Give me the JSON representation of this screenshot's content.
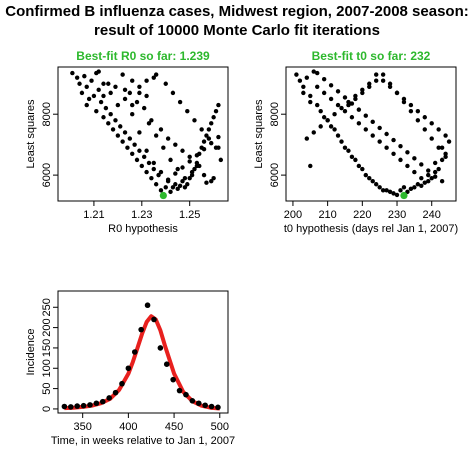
{
  "title_line1": "Confirmed B influenza cases, Midwest region, 2007-2008 season:",
  "title_line2": "result of 10000 Monte Carlo fit iterations",
  "chart_data": [
    {
      "type": "scatter",
      "title": "Best-fit R0 so far: 1.239",
      "title_color": "#2db82d",
      "xlabel": "R0 hypothesis",
      "ylabel": "Least squares",
      "xlim": [
        1.195,
        1.266
      ],
      "ylim": [
        5150,
        9550
      ],
      "xticks": [
        1.21,
        1.23,
        1.25
      ],
      "xtick_labels": [
        "1.21",
        "1.23",
        "1.25"
      ],
      "yticks": [
        6000,
        8000
      ],
      "ytick_labels": [
        "6000",
        "8000"
      ],
      "best_point": {
        "x": 1.239,
        "y": 5330,
        "color": "#2db82d"
      },
      "x": [
        1.201,
        1.203,
        1.204,
        1.206,
        1.205,
        1.207,
        1.208,
        1.209,
        1.21,
        1.207,
        1.212,
        1.211,
        1.213,
        1.214,
        1.212,
        1.215,
        1.216,
        1.214,
        1.217,
        1.218,
        1.219,
        1.216,
        1.22,
        1.221,
        1.222,
        1.219,
        1.223,
        1.224,
        1.225,
        1.222,
        1.226,
        1.227,
        1.228,
        1.225,
        1.229,
        1.23,
        1.231,
        1.228,
        1.232,
        1.233,
        1.234,
        1.231,
        1.235,
        1.236,
        1.237,
        1.234,
        1.238,
        1.24,
        1.241,
        1.238,
        1.242,
        1.243,
        1.244,
        1.241,
        1.245,
        1.246,
        1.247,
        1.244,
        1.248,
        1.249,
        1.25,
        1.247,
        1.251,
        1.252,
        1.253,
        1.25,
        1.254,
        1.255,
        1.256,
        1.253,
        1.257,
        1.258,
        1.259,
        1.256,
        1.26,
        1.261,
        1.262,
        1.259,
        1.263,
        1.262,
        1.236,
        1.24,
        1.243,
        1.246,
        1.249,
        1.252,
        1.255,
        1.258,
        1.261,
        1.232,
        1.229,
        1.226,
        1.233,
        1.236,
        1.239,
        1.242,
        1.245,
        1.248,
        1.251,
        1.254,
        1.257,
        1.26,
        1.223,
        1.226,
        1.229,
        1.232,
        1.235,
        1.238,
        1.241,
        1.244,
        1.247,
        1.25,
        1.253,
        1.256,
        1.259,
        1.262,
        1.211,
        1.214,
        1.217,
        1.22,
        1.223,
        1.226,
        1.229,
        1.232,
        1.235
      ],
      "y": [
        9350,
        9200,
        9000,
        9250,
        8700,
        8900,
        8500,
        9100,
        8600,
        8300,
        8800,
        8100,
        8400,
        7900,
        9400,
        8200,
        7700,
        8600,
        8000,
        7500,
        7800,
        9000,
        7300,
        7600,
        7100,
        8900,
        7400,
        6900,
        7200,
        9300,
        6700,
        7000,
        6500,
        8700,
        6800,
        6300,
        6600,
        8400,
        6100,
        6400,
        5900,
        8200,
        6200,
        5700,
        6000,
        7800,
        5500,
        5600,
        5800,
        7500,
        5450,
        5600,
        5700,
        7200,
        5550,
        5650,
        5800,
        7000,
        5600,
        5700,
        5900,
        6800,
        6000,
        6200,
        6400,
        6600,
        6700,
        6900,
        7100,
        6300,
        7300,
        7500,
        7700,
        6000,
        7900,
        8100,
        8300,
        5800,
        6500,
        6900,
        9300,
        9000,
        8700,
        8400,
        8100,
        7800,
        7500,
        7200,
        6900,
        9100,
        8700,
        8300,
        7700,
        7300,
        6900,
        6500,
        6200,
        5900,
        6100,
        6300,
        5750,
        5900,
        8800,
        8000,
        7400,
        6800,
        6400,
        6100,
        5850,
        6050,
        6250,
        6450,
        6650,
        6850,
        7050,
        7250,
        9350,
        9000,
        8700,
        8300,
        8500,
        9100,
        8900,
        8600,
        9200
      ]
    },
    {
      "type": "scatter",
      "title": "Best-fit t0 so far: 232",
      "title_color": "#2db82d",
      "xlabel": "t0 hypothesis (days rel Jan 1, 2007)",
      "ylabel": "Least squares",
      "xlim": [
        198,
        247
      ],
      "ylim": [
        5150,
        9550
      ],
      "xticks": [
        200,
        210,
        220,
        230,
        240
      ],
      "xtick_labels": [
        "200",
        "210",
        "220",
        "230",
        "240"
      ],
      "yticks": [
        6000,
        8000
      ],
      "ytick_labels": [
        "6000",
        "8000"
      ],
      "best_point": {
        "x": 232,
        "y": 5330,
        "color": "#2db82d"
      },
      "x": [
        201,
        202,
        203,
        204,
        203,
        205,
        206,
        205,
        207,
        208,
        207,
        209,
        210,
        209,
        211,
        212,
        211,
        213,
        214,
        213,
        215,
        216,
        215,
        217,
        218,
        217,
        219,
        220,
        219,
        221,
        222,
        221,
        223,
        224,
        223,
        225,
        226,
        225,
        227,
        228,
        227,
        229,
        230,
        229,
        231,
        232,
        231,
        233,
        234,
        233,
        235,
        236,
        235,
        237,
        238,
        237,
        239,
        240,
        239,
        241,
        242,
        241,
        243,
        244,
        243,
        245,
        244,
        242,
        240,
        238,
        236,
        234,
        232,
        230,
        228,
        226,
        224,
        222,
        220,
        218,
        216,
        214,
        212,
        210,
        208,
        206,
        204,
        243,
        241,
        239,
        237,
        235,
        233,
        231,
        229,
        227,
        225,
        223,
        221,
        219,
        217,
        215,
        213,
        211,
        209,
        207,
        205,
        244,
        242,
        240,
        238,
        236,
        234,
        232,
        230,
        228,
        226,
        224,
        222,
        220,
        218,
        216
      ],
      "y": [
        9300,
        9100,
        8900,
        9200,
        8700,
        8600,
        9400,
        8400,
        8300,
        8100,
        8900,
        7900,
        7800,
        8700,
        7600,
        7500,
        8500,
        7300,
        7100,
        8300,
        6900,
        6800,
        8100,
        6600,
        6500,
        7900,
        6300,
        6200,
        7700,
        6000,
        5900,
        7500,
        5800,
        5700,
        7300,
        5600,
        5500,
        7100,
        5500,
        5450,
        6900,
        5400,
        5350,
        6700,
        5500,
        5600,
        6500,
        5450,
        5550,
        6300,
        5600,
        5700,
        6100,
        5650,
        5750,
        5900,
        5800,
        5900,
        6000,
        6100,
        6200,
        6400,
        6500,
        6700,
        6900,
        7100,
        7300,
        7500,
        7700,
        7900,
        8100,
        8300,
        8500,
        8700,
        8900,
        9100,
        9300,
        9000,
        8800,
        8600,
        8400,
        8200,
        8000,
        7800,
        7600,
        7400,
        7200,
        5800,
        5950,
        6150,
        6350,
        6550,
        6750,
        6950,
        7150,
        7350,
        7550,
        7750,
        7950,
        8150,
        8350,
        8550,
        8750,
        8950,
        9150,
        9350,
        6300,
        6600,
        6900,
        7200,
        7500,
        7800,
        8100,
        8400,
        8700,
        9000,
        9300,
        9100,
        8900,
        8700,
        8500,
        8300
      ]
    },
    {
      "type": "line",
      "title": "",
      "xlabel": "Time, in weeks relative to Jan 1, 2007",
      "ylabel": "Incidence",
      "xlim": [
        323,
        509
      ],
      "ylim": [
        -10,
        290
      ],
      "xticks": [
        350,
        400,
        450,
        500
      ],
      "xtick_labels": [
        "350",
        "400",
        "450",
        "500"
      ],
      "yticks": [
        0,
        50,
        100,
        150,
        200,
        250
      ],
      "ytick_labels": [
        "0",
        "50",
        "100",
        "150",
        "200",
        "250"
      ],
      "series": [
        {
          "type": "scatter",
          "color": "#000000",
          "x": [
            330,
            337,
            344,
            351,
            358,
            365,
            372,
            379,
            386,
            393,
            400,
            407,
            414,
            421,
            428,
            435,
            442,
            449,
            456,
            463,
            470,
            477,
            484,
            491,
            498
          ],
          "y": [
            6,
            5,
            7,
            8,
            10,
            14,
            18,
            27,
            40,
            62,
            100,
            140,
            195,
            255,
            220,
            150,
            110,
            72,
            45,
            35,
            20,
            14,
            9,
            6,
            4
          ]
        },
        {
          "type": "line",
          "color": "#e8201e",
          "x": [
            330,
            340,
            350,
            360,
            370,
            380,
            390,
            400,
            405,
            410,
            415,
            420,
            425,
            430,
            435,
            440,
            450,
            460,
            470,
            480,
            490,
            500
          ],
          "y": [
            2,
            3,
            5,
            8,
            14,
            25,
            47,
            87,
            116,
            150,
            185,
            214,
            228,
            220,
            193,
            156,
            87,
            42,
            19,
            8,
            3,
            1
          ]
        }
      ]
    }
  ]
}
